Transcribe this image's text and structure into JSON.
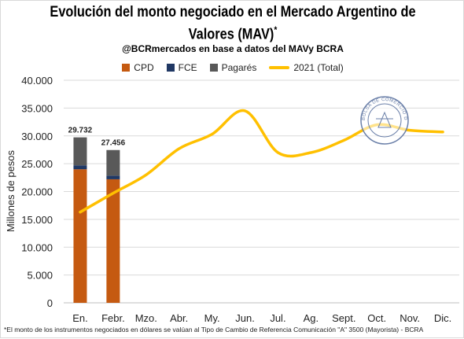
{
  "title_line1": "Evolución del monto negociado en el Mercado Argentino de",
  "title_line2": "Valores (MAV)",
  "title_mark": "*",
  "subtitle": "@BCRmercados en base a datos del MAVy BCRA",
  "footnote": "*El monto de los instrumentos negociados en dólares se valúan al Tipo de Cambio de Referencia Comunicación \"A\" 3500 (Mayorista) - BCRA",
  "seal": {
    "text_top": "BOLSA DE COMERCIO DE ROSARIO",
    "color": "#6a7fa8"
  },
  "chart_data": {
    "type": "bar",
    "categories": [
      "En.",
      "Febr.",
      "Mzo.",
      "Abr.",
      "My.",
      "Jun.",
      "Jul.",
      "Ag.",
      "Sept.",
      "Oct.",
      "Nov.",
      "Dic."
    ],
    "ylabel": "Millones de pesos",
    "ylim": [
      0,
      40000
    ],
    "yticks": [
      "0",
      "5.000",
      "10.000",
      "15.000",
      "20.000",
      "25.000",
      "30.000",
      "35.000",
      "40.000"
    ],
    "ytick_values": [
      0,
      5000,
      10000,
      15000,
      20000,
      25000,
      30000,
      35000,
      40000
    ],
    "grid": true,
    "legend_position": "top",
    "stacked_series": [
      {
        "name": "CPD",
        "color": "#c55a11",
        "values": [
          24000,
          22200
        ]
      },
      {
        "name": "FCE",
        "color": "#203864",
        "values": [
          700,
          650
        ]
      },
      {
        "name": "Pagarés",
        "color": "#595959",
        "values": [
          5032,
          4606
        ]
      }
    ],
    "totals_labels": [
      "29.732",
      "27.456"
    ],
    "line_series": {
      "name": "2021 (Total)",
      "color": "#ffc000",
      "values": [
        16300,
        19700,
        23000,
        27700,
        30300,
        34500,
        27000,
        27000,
        29200,
        32000,
        31000,
        30700
      ]
    }
  }
}
